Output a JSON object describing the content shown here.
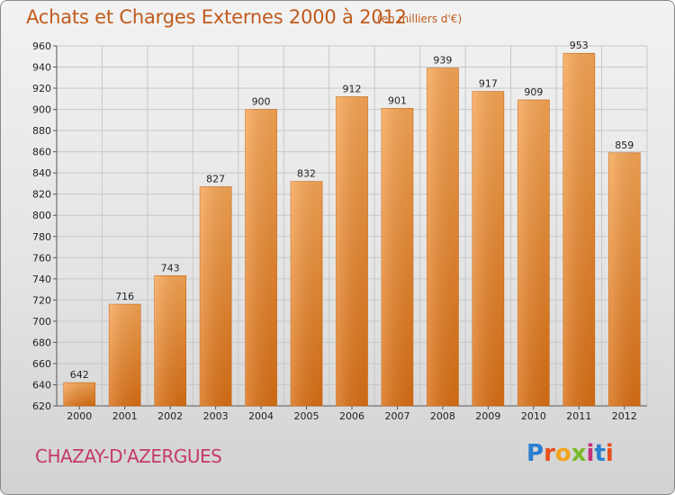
{
  "title": "Achats et Charges Externes 2000 à 2012",
  "subtitle": "(en milliers d'€)",
  "commune": "CHAZAY-D'AZERGUES",
  "logo": {
    "text": "Proxiti",
    "letters": [
      {
        "ch": "P",
        "color": "#2a7fd0"
      },
      {
        "ch": "r",
        "color": "#e94e1b"
      },
      {
        "ch": "o",
        "color": "#f2a31b"
      },
      {
        "ch": "x",
        "color": "#7ab929"
      },
      {
        "ch": "i",
        "color": "#c2307a"
      },
      {
        "ch": "t",
        "color": "#2a7fd0"
      },
      {
        "ch": "i",
        "color": "#e94e1b"
      }
    ]
  },
  "chart_data": {
    "type": "bar",
    "categories": [
      "2000",
      "2001",
      "2002",
      "2003",
      "2004",
      "2005",
      "2006",
      "2007",
      "2008",
      "2009",
      "2010",
      "2011",
      "2012"
    ],
    "values": [
      642,
      716,
      743,
      827,
      900,
      832,
      912,
      901,
      939,
      917,
      909,
      953,
      859
    ],
    "ylim": [
      620,
      960
    ],
    "yticks": [
      620,
      640,
      660,
      680,
      700,
      720,
      740,
      760,
      780,
      800,
      820,
      840,
      860,
      880,
      900,
      920,
      940,
      960
    ],
    "grid": true,
    "bar_color": "#f08a2c"
  }
}
